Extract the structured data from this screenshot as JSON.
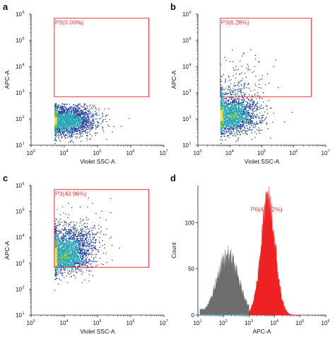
{
  "figure": {
    "panel_letters": [
      "a",
      "b",
      "c",
      "d"
    ]
  },
  "colors": {
    "gate": "#e8383d",
    "density_low": "#1f3f9a",
    "density_mid": "#2aa6b8",
    "density_high": "#6cc24a",
    "density_peak": "#e6e640",
    "histogram_gray": "#6e6e6e",
    "histogram_red": "#ee2222",
    "histogram_blue_base": "#3aa7e0"
  },
  "chart_data": [
    {
      "panel": "a",
      "type": "scatter",
      "xlabel": "Violet SSC-A",
      "ylabel": "APC-A",
      "xscale": "log",
      "yscale": "log",
      "xlim": [
        1000,
        10000000
      ],
      "ylim": [
        10,
        1000000
      ],
      "x_ticks": [
        {
          "base": "10",
          "exp": "3"
        },
        {
          "base": "10",
          "exp": "4"
        },
        {
          "base": "10",
          "exp": "5"
        },
        {
          "base": "10",
          "exp": "6"
        },
        {
          "base": "10",
          "exp": "7"
        }
      ],
      "y_ticks": [
        {
          "base": "10",
          "exp": "1"
        },
        {
          "base": "10",
          "exp": "2"
        },
        {
          "base": "10",
          "exp": "3"
        },
        {
          "base": "10",
          "exp": "4"
        },
        {
          "base": "10",
          "exp": "5"
        },
        {
          "base": "10",
          "exp": "6"
        }
      ],
      "gate": {
        "label": "P3(0.00%)",
        "x_range": [
          5000,
          3500000
        ],
        "y_range": [
          700,
          700000
        ]
      },
      "population": {
        "x_center": 11000,
        "x_spread": 0.45,
        "y_center": 90,
        "y_spread": 0.28,
        "x_floor": 5000,
        "y_floor": 10,
        "y_ceiling": 400,
        "events": 2600,
        "fraction_in_gate": 0.0
      }
    },
    {
      "panel": "b",
      "type": "scatter",
      "xlabel": "Violet SSC-A",
      "ylabel": "APC-A",
      "xscale": "log",
      "yscale": "log",
      "xlim": [
        1000,
        10000000
      ],
      "ylim": [
        10,
        1000000
      ],
      "x_ticks": [
        {
          "base": "10",
          "exp": "3"
        },
        {
          "base": "10",
          "exp": "4"
        },
        {
          "base": "10",
          "exp": "5"
        },
        {
          "base": "10",
          "exp": "6"
        },
        {
          "base": "10",
          "exp": "7"
        }
      ],
      "y_ticks": [
        {
          "base": "10",
          "exp": "1"
        },
        {
          "base": "10",
          "exp": "2"
        },
        {
          "base": "10",
          "exp": "3"
        },
        {
          "base": "10",
          "exp": "4"
        },
        {
          "base": "10",
          "exp": "5"
        },
        {
          "base": "10",
          "exp": "6"
        }
      ],
      "gate": {
        "label": "P3(6.28%)",
        "x_range": [
          5000,
          3500000
        ],
        "y_range": [
          700,
          700000
        ]
      },
      "population": {
        "x_center": 11000,
        "x_spread": 0.45,
        "y_center": 150,
        "y_spread": 0.35,
        "x_floor": 5000,
        "y_floor": 10,
        "y_ceiling": 4000,
        "events": 2600,
        "fraction_in_gate": 0.0628
      }
    },
    {
      "panel": "c",
      "type": "scatter",
      "xlabel": "Violet SSC-A",
      "ylabel": "APC-A",
      "xscale": "log",
      "yscale": "log",
      "xlim": [
        1000,
        10000000
      ],
      "ylim": [
        10,
        1000000
      ],
      "x_ticks": [
        {
          "base": "10",
          "exp": "3"
        },
        {
          "base": "10",
          "exp": "4"
        },
        {
          "base": "10",
          "exp": "5"
        },
        {
          "base": "10",
          "exp": "6"
        },
        {
          "base": "10",
          "exp": "7"
        }
      ],
      "y_ticks": [
        {
          "base": "10",
          "exp": "1"
        },
        {
          "base": "10",
          "exp": "2"
        },
        {
          "base": "10",
          "exp": "3"
        },
        {
          "base": "10",
          "exp": "4"
        },
        {
          "base": "10",
          "exp": "5"
        },
        {
          "base": "10",
          "exp": "6"
        }
      ],
      "gate": {
        "label": "P3(43.96%)",
        "x_range": [
          5000,
          3500000
        ],
        "y_range": [
          700,
          700000
        ]
      },
      "population": {
        "x_center": 9000,
        "x_spread": 0.4,
        "y_center": 3000,
        "y_spread": 0.45,
        "x_floor": 5000,
        "y_floor": 10,
        "y_ceiling": 200000,
        "events": 2800,
        "fraction_in_gate": 0.4396
      }
    },
    {
      "panel": "d",
      "type": "histogram",
      "xlabel": "APC-A",
      "ylabel": "Count",
      "xscale": "log",
      "xlim": [
        10,
        1000000
      ],
      "ylim": [
        0,
        140
      ],
      "x_ticks": [
        {
          "base": "10",
          "exp": "1"
        },
        {
          "base": "10",
          "exp": "2"
        },
        {
          "base": "10",
          "exp": "3"
        },
        {
          "base": "10",
          "exp": "4"
        },
        {
          "base": "10",
          "exp": "5"
        },
        {
          "base": "10",
          "exp": "6"
        }
      ],
      "y_ticks": [
        0,
        50,
        100
      ],
      "gate_label": "P6(44.22%)",
      "series": [
        {
          "color_key": "histogram_gray",
          "peak_x": 150,
          "peak_count": 63,
          "spread_decades": 0.42,
          "x_from": 12,
          "x_to": 1000
        },
        {
          "color_key": "histogram_red",
          "peak_x": 5500,
          "peak_count": 120,
          "spread_decades": 0.28,
          "x_from": 1000,
          "x_to": 80000
        }
      ]
    }
  ]
}
